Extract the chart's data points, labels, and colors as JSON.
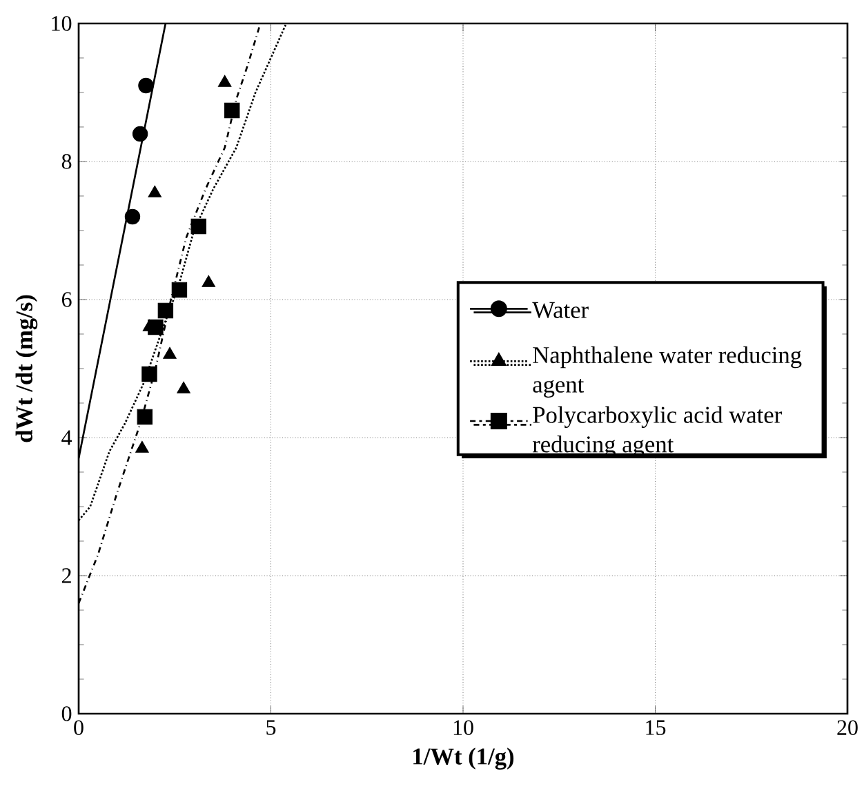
{
  "chart_data": {
    "type": "scatter",
    "xlabel": "1/Wt  (1/g)",
    "ylabel": "dWt /dt (mg/s)",
    "xlim": [
      0,
      20
    ],
    "ylim": [
      0,
      10
    ],
    "xticks": [
      0,
      5,
      10,
      15,
      20
    ],
    "yticks": [
      0,
      2,
      4,
      6,
      8,
      10
    ],
    "grid": true,
    "legend": "right",
    "series": [
      {
        "name": "Water",
        "color": "#000000",
        "marker": "circle",
        "line_style": "solid",
        "x": [
          1.4,
          1.6,
          1.75
        ],
        "values": [
          7.2,
          8.4,
          9.1
        ]
      },
      {
        "name": "Naphthalene water reducing agent",
        "color": "#000000",
        "marker": "triangle",
        "line_style": "dotted",
        "x": [
          1.65,
          2.73,
          2.37,
          1.84,
          3.38,
          1.98,
          3.8
        ],
        "values": [
          3.84,
          4.7,
          5.2,
          5.6,
          6.24,
          7.54,
          9.14
        ]
      },
      {
        "name": "Polycarboxylic acid water reducing agent",
        "color": "#000000",
        "marker": "square",
        "line_style": "dashdotted",
        "x": [
          1.72,
          1.84,
          2.0,
          2.26,
          2.62,
          3.12,
          3.99
        ],
        "values": [
          4.3,
          4.92,
          5.6,
          5.84,
          6.14,
          7.06,
          8.74
        ]
      },
      {
        "type": "line",
        "color": "#000000",
        "marker": "none",
        "line_style": "solid",
        "x": [
          0,
          2.26
        ],
        "values": [
          3.7,
          10
        ]
      },
      {
        "type": "line",
        "color": "#000000",
        "marker": "none",
        "line_style": "dotted",
        "x": [
          0,
          0.3,
          0.8,
          1.2,
          1.7,
          2.2,
          2.6,
          3.0,
          3.5,
          4.1,
          4.6,
          5.4
        ],
        "values": [
          2.8,
          3.0,
          3.8,
          4.2,
          4.8,
          5.6,
          6.2,
          7.0,
          7.6,
          8.2,
          9.0,
          10
        ]
      },
      {
        "type": "line",
        "color": "#000000",
        "marker": "none",
        "line_style": "dashdotted",
        "x": [
          0,
          0.5,
          1.0,
          1.6,
          2.0,
          2.4,
          2.8,
          3.3,
          3.8,
          4.1,
          4.4,
          4.7
        ],
        "values": [
          1.6,
          2.3,
          3.2,
          4.2,
          5.0,
          6.0,
          6.9,
          7.6,
          8.2,
          8.9,
          9.4,
          9.95
        ]
      }
    ]
  }
}
